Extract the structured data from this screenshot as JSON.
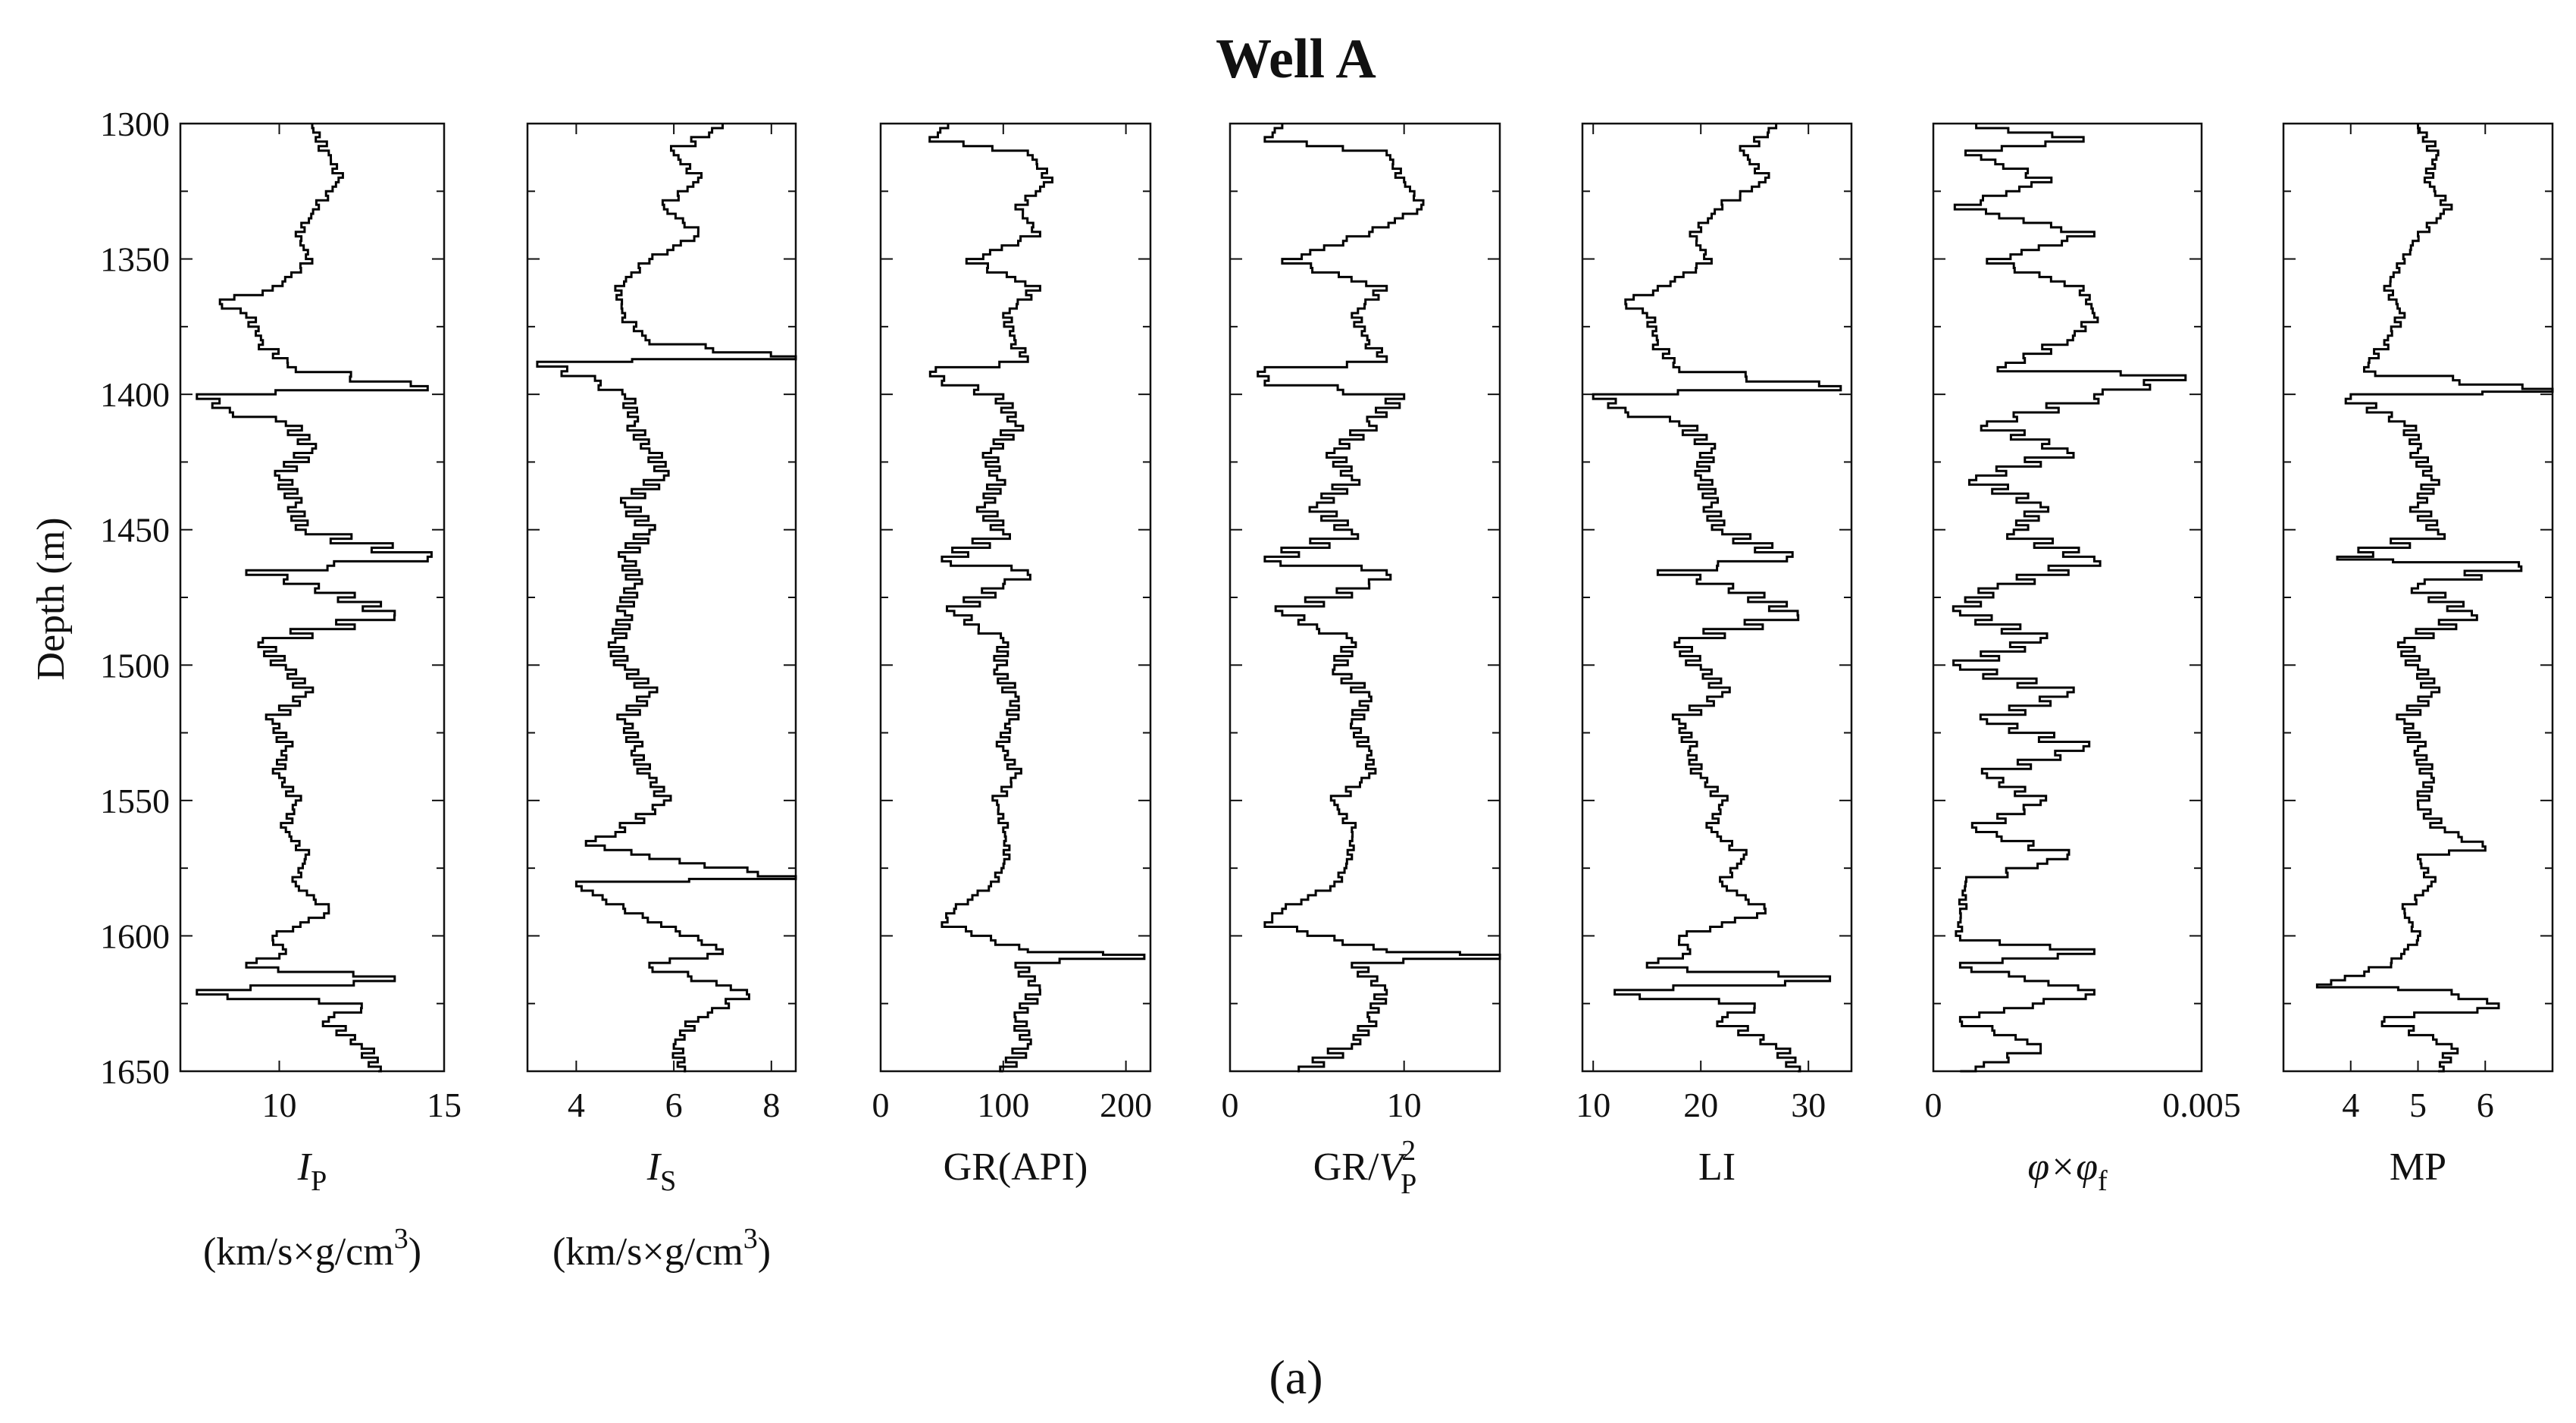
{
  "chart_data": {
    "type": "line",
    "title": "Well A",
    "panel_label": "(a)",
    "ylabel": "Depth (m)",
    "ylim": [
      1300,
      1650
    ],
    "yaxis_inverted": true,
    "yticks": [
      "1300",
      "1350",
      "1400",
      "1450",
      "1500",
      "1550",
      "1600",
      "1650"
    ],
    "ytick_values": [
      1300,
      1350,
      1400,
      1450,
      1500,
      1550,
      1600,
      1650
    ],
    "tracks": [
      {
        "id": "ip",
        "xlabel_symbol": "I",
        "xlabel_subscript": "P",
        "xlabel_units": "(km/s×g/cm",
        "xlabel_units_sup": "3",
        "xlabel_units_close": ")",
        "xlim": [
          7,
          15
        ],
        "xticks": [
          "10",
          "15"
        ],
        "xtick_values": [
          10,
          15
        ],
        "series": {
          "depth": [
            1300,
            1310,
            1320,
            1330,
            1340,
            1350,
            1360,
            1365,
            1370,
            1380,
            1390,
            1397,
            1400,
            1405,
            1410,
            1420,
            1430,
            1440,
            1450,
            1460,
            1465,
            1470,
            1480,
            1490,
            1500,
            1510,
            1520,
            1530,
            1540,
            1550,
            1560,
            1570,
            1580,
            1590,
            1600,
            1605,
            1610,
            1615,
            1620,
            1625,
            1630,
            1640,
            1650
          ],
          "value": [
            11.0,
            11.5,
            11.8,
            11.2,
            10.5,
            11.0,
            9.8,
            8.2,
            9.0,
            9.5,
            10.5,
            14.5,
            7.5,
            8.5,
            10.2,
            11.0,
            10.0,
            10.5,
            10.8,
            14.5,
            9.0,
            11.2,
            13.5,
            9.5,
            10.2,
            10.8,
            9.8,
            10.2,
            10.0,
            10.5,
            10.2,
            10.8,
            10.5,
            11.5,
            9.8,
            10.2,
            9.0,
            13.5,
            7.5,
            12.5,
            11.5,
            12.5,
            13.0
          ]
        }
      },
      {
        "id": "is",
        "xlabel_symbol": "I",
        "xlabel_subscript": "S",
        "xlabel_units": "(km/s×g/cm",
        "xlabel_units_sup": "3",
        "xlabel_units_close": ")",
        "xlim": [
          3,
          8.5
        ],
        "xticks": [
          "4",
          "6",
          "8"
        ],
        "xtick_values": [
          4,
          6,
          8
        ],
        "series": {
          "depth": [
            1300,
            1310,
            1320,
            1330,
            1340,
            1350,
            1360,
            1370,
            1380,
            1386,
            1388,
            1395,
            1400,
            1410,
            1420,
            1430,
            1440,
            1450,
            1460,
            1470,
            1480,
            1490,
            1500,
            1510,
            1520,
            1530,
            1540,
            1550,
            1560,
            1565,
            1570,
            1578,
            1580,
            1590,
            1600,
            1605,
            1610,
            1620,
            1630,
            1640,
            1650
          ],
          "value": [
            7.0,
            6.0,
            6.5,
            5.8,
            6.5,
            5.5,
            4.8,
            5.0,
            5.5,
            8.5,
            3.2,
            4.5,
            5.0,
            5.2,
            5.5,
            5.8,
            5.0,
            5.5,
            5.0,
            5.2,
            5.0,
            4.8,
            5.0,
            5.5,
            5.0,
            5.2,
            5.5,
            5.8,
            5.0,
            4.2,
            5.5,
            8.5,
            4.0,
            5.0,
            6.5,
            7.0,
            5.5,
            7.5,
            6.5,
            6.0,
            6.2
          ]
        }
      },
      {
        "id": "gr",
        "xlabel_symbol": "GR(API)",
        "xlim": [
          0,
          220
        ],
        "xticks": [
          "0",
          "100",
          "200"
        ],
        "xtick_values": [
          0,
          100,
          200
        ],
        "series": {
          "depth": [
            1300,
            1305,
            1310,
            1320,
            1330,
            1340,
            1350,
            1360,
            1370,
            1380,
            1386,
            1390,
            1395,
            1400,
            1410,
            1420,
            1430,
            1440,
            1450,
            1460,
            1465,
            1470,
            1480,
            1485,
            1490,
            1500,
            1510,
            1520,
            1530,
            1540,
            1550,
            1560,
            1570,
            1580,
            1590,
            1595,
            1600,
            1605,
            1607,
            1610,
            1620,
            1630,
            1640,
            1650
          ],
          "value": [
            55,
            40,
            120,
            140,
            110,
            130,
            70,
            130,
            100,
            110,
            120,
            45,
            50,
            100,
            110,
            90,
            95,
            85,
            100,
            50,
            120,
            100,
            60,
            80,
            100,
            95,
            110,
            105,
            100,
            110,
            95,
            100,
            105,
            90,
            60,
            50,
            90,
            120,
            215,
            110,
            130,
            110,
            120,
            100
          ]
        }
      },
      {
        "id": "grvp",
        "xlabel_symbol": "GR/",
        "xlabel_v": "V",
        "xlabel_subscript": "P",
        "xlabel_superscript": "2",
        "xlim": [
          0,
          15.5
        ],
        "xticks": [
          "0",
          "10"
        ],
        "xtick_values": [
          0,
          10
        ],
        "series": {
          "depth": [
            1300,
            1305,
            1310,
            1320,
            1330,
            1340,
            1350,
            1360,
            1370,
            1380,
            1386,
            1390,
            1395,
            1400,
            1410,
            1420,
            1430,
            1440,
            1450,
            1460,
            1465,
            1470,
            1480,
            1485,
            1490,
            1500,
            1510,
            1520,
            1530,
            1540,
            1550,
            1560,
            1570,
            1580,
            1590,
            1595,
            1600,
            1605,
            1607,
            1610,
            1620,
            1630,
            1640,
            1650
          ],
          "value": [
            3,
            2,
            9,
            10,
            11,
            8,
            3,
            9,
            7,
            8,
            9,
            2,
            2,
            10,
            8,
            6,
            7,
            5,
            7,
            2,
            9,
            8,
            3,
            5,
            7,
            6,
            8,
            7,
            8,
            8,
            6,
            7,
            7,
            6,
            3,
            2,
            6,
            9,
            15.5,
            7,
            9,
            8,
            7,
            4
          ]
        }
      },
      {
        "id": "li",
        "xlabel_symbol": "LI",
        "xlim": [
          9,
          34
        ],
        "xticks": [
          "10",
          "20",
          "30"
        ],
        "xtick_values": [
          10,
          20,
          30
        ],
        "series": {
          "depth": [
            1300,
            1310,
            1320,
            1330,
            1340,
            1350,
            1360,
            1365,
            1370,
            1380,
            1390,
            1397,
            1400,
            1405,
            1410,
            1420,
            1430,
            1440,
            1450,
            1460,
            1465,
            1470,
            1480,
            1490,
            1500,
            1510,
            1520,
            1530,
            1540,
            1550,
            1560,
            1570,
            1580,
            1590,
            1600,
            1605,
            1610,
            1615,
            1620,
            1625,
            1630,
            1640,
            1650
          ],
          "value": [
            27,
            24,
            26,
            22,
            19,
            21,
            16,
            13,
            15,
            16,
            18,
            33,
            10,
            13,
            18,
            21,
            20,
            21,
            22,
            28,
            16,
            23,
            29,
            18,
            20,
            22,
            18,
            19,
            20,
            22,
            21,
            24,
            22,
            26,
            18,
            19,
            15,
            32,
            12,
            25,
            22,
            27,
            29
          ]
        }
      },
      {
        "id": "phi",
        "xlabel_symbol": "φ×φ",
        "xlabel_subscript": "f",
        "xlim": [
          0,
          0.005
        ],
        "xticks": [
          "0",
          "0.005"
        ],
        "xtick_values": [
          0,
          0.005
        ],
        "series": {
          "depth": [
            1300,
            1305,
            1310,
            1320,
            1330,
            1340,
            1350,
            1360,
            1370,
            1380,
            1390,
            1393,
            1400,
            1410,
            1420,
            1430,
            1440,
            1450,
            1460,
            1470,
            1480,
            1490,
            1500,
            1510,
            1520,
            1530,
            1540,
            1550,
            1560,
            1570,
            1580,
            1590,
            1600,
            1605,
            1610,
            1620,
            1630,
            1640,
            1650
          ],
          "value": [
            0.0008,
            0.0028,
            0.0006,
            0.0022,
            0.0004,
            0.003,
            0.001,
            0.0028,
            0.003,
            0.0025,
            0.0012,
            0.0047,
            0.003,
            0.001,
            0.0025,
            0.0008,
            0.002,
            0.0015,
            0.003,
            0.0012,
            0.0005,
            0.002,
            0.0005,
            0.0025,
            0.001,
            0.0028,
            0.001,
            0.002,
            0.0008,
            0.0025,
            0.0006,
            0.0005,
            0.0005,
            0.003,
            0.0005,
            0.003,
            0.0005,
            0.002,
            0.0005
          ]
        }
      },
      {
        "id": "mp",
        "xlabel_symbol": "MP",
        "xlim": [
          3,
          7
        ],
        "xticks": [
          "4",
          "5",
          "6"
        ],
        "xtick_values": [
          4,
          5,
          6
        ],
        "series": {
          "depth": [
            1300,
            1310,
            1320,
            1330,
            1340,
            1350,
            1360,
            1370,
            1380,
            1390,
            1398,
            1400,
            1410,
            1420,
            1430,
            1440,
            1450,
            1460,
            1462,
            1470,
            1480,
            1490,
            1500,
            1510,
            1520,
            1530,
            1540,
            1550,
            1560,
            1567,
            1570,
            1580,
            1590,
            1600,
            1610,
            1618,
            1620,
            1625,
            1630,
            1640,
            1650
          ],
          "value": [
            5.0,
            5.3,
            5.1,
            5.5,
            5.0,
            4.8,
            4.5,
            4.8,
            4.5,
            4.2,
            7.0,
            4.0,
            4.8,
            5.0,
            5.2,
            5.0,
            5.3,
            3.8,
            6.5,
            5.0,
            5.8,
            4.8,
            5.0,
            5.2,
            4.8,
            5.0,
            5.2,
            5.0,
            5.4,
            6.0,
            5.0,
            5.2,
            4.8,
            5.0,
            4.6,
            3.5,
            5.5,
            6.2,
            4.5,
            5.5,
            5.3
          ]
        }
      }
    ]
  }
}
